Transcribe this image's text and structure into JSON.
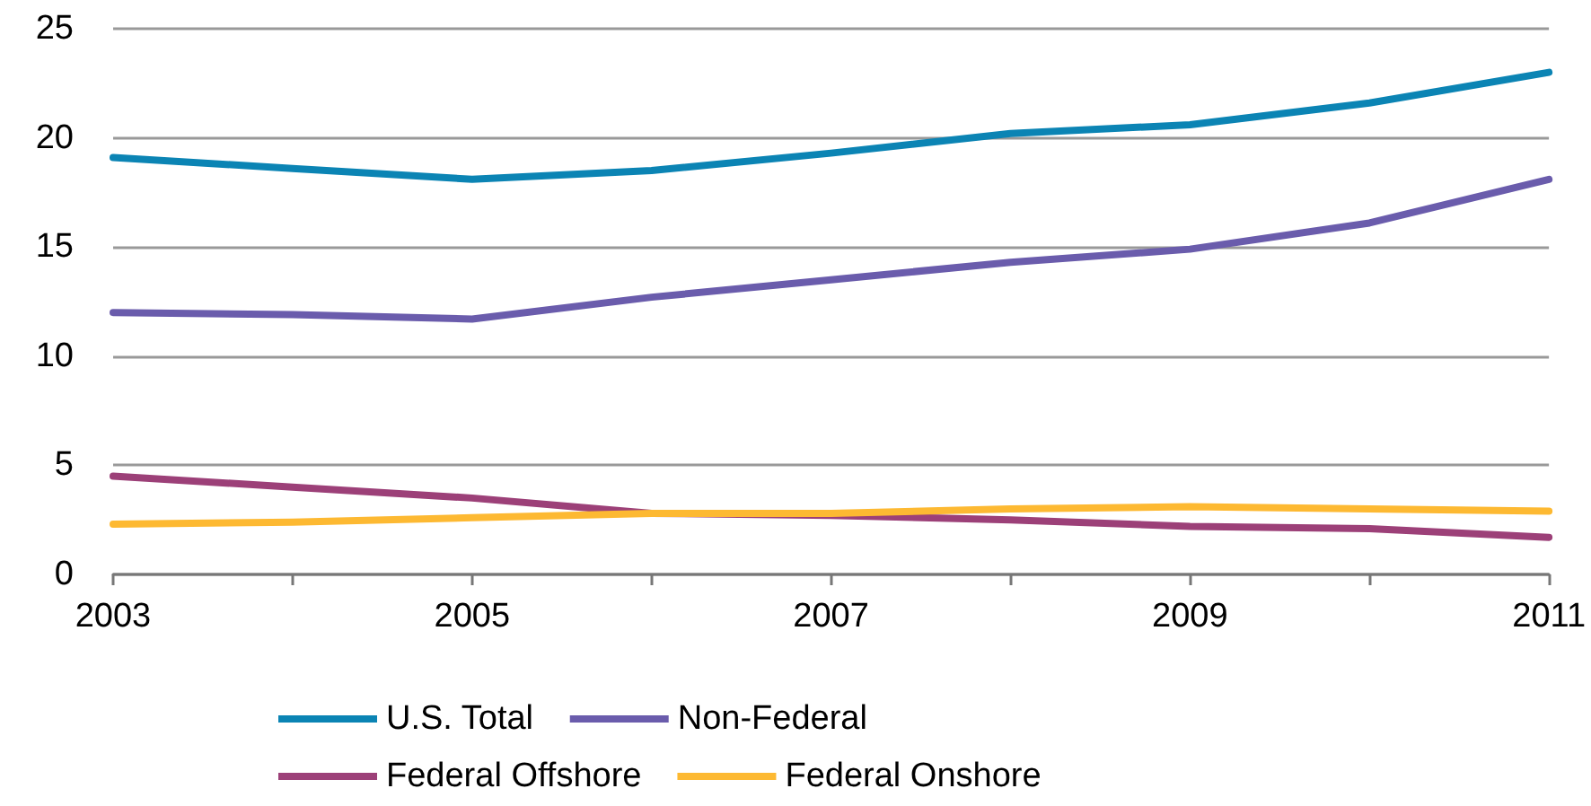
{
  "chart_data": {
    "type": "line",
    "x": [
      2003,
      2004,
      2005,
      2006,
      2007,
      2008,
      2009,
      2010,
      2011
    ],
    "xlim": [
      2003,
      2011
    ],
    "xticks": [
      2003,
      {
        "value": 2004,
        "label": null
      },
      2005,
      {
        "value": 2006,
        "label": null
      },
      2007,
      {
        "value": 2008,
        "label": null
      },
      2009,
      {
        "value": 2010,
        "label": null
      },
      2011
    ],
    "ylim": [
      0,
      25
    ],
    "yticks": [
      0,
      5,
      10,
      15,
      20,
      25
    ],
    "grid": "y",
    "legend": "bottom",
    "marker": "none",
    "line_style": "solid",
    "series": [
      {
        "name": "U.S. Total",
        "color": "#0b84b4",
        "values": [
          19.1,
          18.6,
          18.1,
          18.5,
          19.3,
          20.2,
          20.6,
          21.6,
          23.0
        ]
      },
      {
        "name": "Non-Federal",
        "color": "#6a5cac",
        "values": [
          12.0,
          11.9,
          11.7,
          12.7,
          13.5,
          14.3,
          14.9,
          16.1,
          18.1
        ]
      },
      {
        "name": "Federal Offshore",
        "color": "#9c4078",
        "values": [
          4.5,
          4.0,
          3.5,
          2.8,
          2.7,
          2.5,
          2.2,
          2.1,
          1.7
        ]
      },
      {
        "name": "Federal Onshore",
        "color": "#fdb932",
        "values": [
          2.3,
          2.4,
          2.6,
          2.8,
          2.8,
          3.0,
          3.1,
          3.0,
          2.9
        ]
      }
    ]
  }
}
